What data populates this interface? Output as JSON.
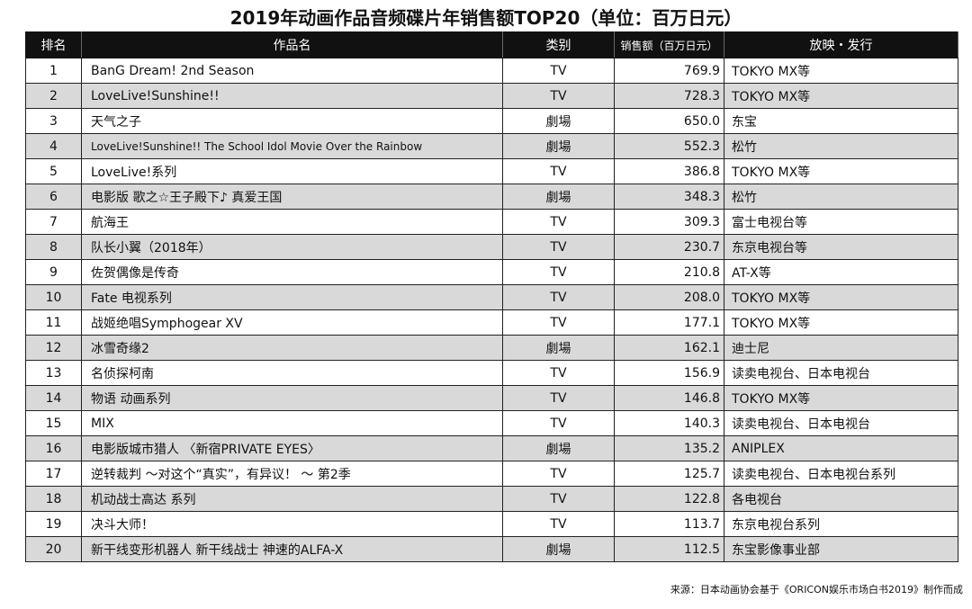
{
  "title": "2019年动画作品音频碟片年销售额TOP20（单位：百万日元）",
  "columns": {
    "rank": "排名",
    "title": "作品名",
    "type": "类别",
    "sales": "销售额（百万日元）",
    "distribution": "放映・发行"
  },
  "rows": [
    {
      "rank": "1",
      "title": "BanG Dream! 2nd Season",
      "type": "TV",
      "sales": "769.9",
      "distribution": "TOKYO MX等"
    },
    {
      "rank": "2",
      "title": "LoveLive!Sunshine!!",
      "type": "TV",
      "sales": "728.3",
      "distribution": "TOKYO MX等"
    },
    {
      "rank": "3",
      "title": "天气之子",
      "type": "劇場",
      "sales": "650.0",
      "distribution": "东宝"
    },
    {
      "rank": "4",
      "title": "LoveLive!Sunshine!! The School Idol Movie Over the Rainbow",
      "type": "劇場",
      "sales": "552.3",
      "distribution": "松竹"
    },
    {
      "rank": "5",
      "title": "LoveLive!系列",
      "type": "TV",
      "sales": "386.8",
      "distribution": "TOKYO MX等"
    },
    {
      "rank": "6",
      "title": "电影版 歌之☆王子殿下♪ 真爱王国",
      "type": "劇場",
      "sales": "348.3",
      "distribution": "松竹"
    },
    {
      "rank": "7",
      "title": "航海王",
      "type": "TV",
      "sales": "309.3",
      "distribution": "富士电视台等"
    },
    {
      "rank": "8",
      "title": "队长小翼（2018年）",
      "type": "TV",
      "sales": "230.7",
      "distribution": "东京电视台等"
    },
    {
      "rank": "9",
      "title": "佐贺偶像是传奇",
      "type": "TV",
      "sales": "210.8",
      "distribution": "AT-X等"
    },
    {
      "rank": "10",
      "title": "Fate 电视系列",
      "type": "TV",
      "sales": "208.0",
      "distribution": "TOKYO MX等"
    },
    {
      "rank": "11",
      "title": "战姬绝唱Symphogear XV",
      "type": "TV",
      "sales": "177.1",
      "distribution": "TOKYO MX等"
    },
    {
      "rank": "12",
      "title": "冰雪奇缘2",
      "type": "劇場",
      "sales": "162.1",
      "distribution": "迪士尼"
    },
    {
      "rank": "13",
      "title": "名侦探柯南",
      "type": "TV",
      "sales": "156.9",
      "distribution": "读卖电视台、日本电视台"
    },
    {
      "rank": "14",
      "title": "物语 动画系列",
      "type": "TV",
      "sales": "146.8",
      "distribution": "TOKYO MX等"
    },
    {
      "rank": "15",
      "title": "MIX",
      "type": "TV",
      "sales": "140.3",
      "distribution": "读卖电视台、日本电视台"
    },
    {
      "rank": "16",
      "title": "电影版城市猎人 〈新宿PRIVATE EYES〉",
      "type": "劇場",
      "sales": "135.2",
      "distribution": "ANIPLEX"
    },
    {
      "rank": "17",
      "title": "逆转裁判 ～对这个“真实”，有异议！ ～ 第2季",
      "type": "TV",
      "sales": "125.7",
      "distribution": "读卖电视台、日本电视台系列"
    },
    {
      "rank": "18",
      "title": "机动战士高达 系列",
      "type": "TV",
      "sales": "122.8",
      "distribution": "各电视台"
    },
    {
      "rank": "19",
      "title": "决斗大师！",
      "type": "TV",
      "sales": "113.7",
      "distribution": "东京电视台系列"
    },
    {
      "rank": "20",
      "title": "新干线变形机器人 新干线战士 神速的ALFA-X",
      "type": "劇場",
      "sales": "112.5",
      "distribution": "东宝影像事业部"
    }
  ],
  "source": "来源：日本动画协会基于《ORICON娱乐市场白书2019》制作而成"
}
